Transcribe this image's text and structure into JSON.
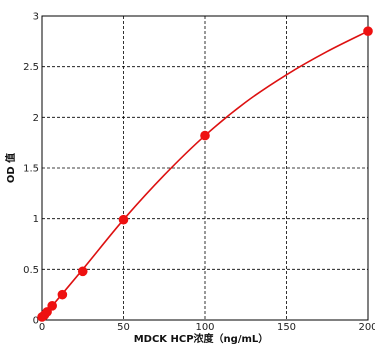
{
  "chart_data": {
    "type": "scatter",
    "xlabel": "MDCK HCP浓度（ng/mL）",
    "ylabel": "OD 值",
    "xlim": [
      0,
      200
    ],
    "ylim": [
      0,
      3
    ],
    "xticks": [
      0,
      50,
      100,
      150,
      200
    ],
    "yticks": [
      0,
      0.5,
      1,
      1.5,
      2,
      2.5,
      3
    ],
    "xtick_labels": [
      "0",
      "50",
      "100",
      "150",
      "200"
    ],
    "ytick_labels": [
      "0",
      "0.5",
      "1",
      "1.5",
      "2",
      "2.5",
      "3"
    ],
    "grid": true,
    "points": {
      "x": [
        0,
        1.56,
        3.13,
        6.25,
        12.5,
        25,
        50,
        100,
        200
      ],
      "y": [
        0.03,
        0.05,
        0.08,
        0.14,
        0.25,
        0.48,
        0.99,
        1.82,
        2.85
      ]
    },
    "fit_curve": {
      "x": [
        0,
        25,
        50,
        75,
        100,
        125,
        150,
        175,
        200
      ],
      "y": [
        0.02,
        0.5,
        0.99,
        1.43,
        1.82,
        2.15,
        2.42,
        2.65,
        2.85
      ]
    },
    "colors": {
      "points": "#ee1111",
      "curve": "#dd1111",
      "grid": "#000000"
    }
  }
}
